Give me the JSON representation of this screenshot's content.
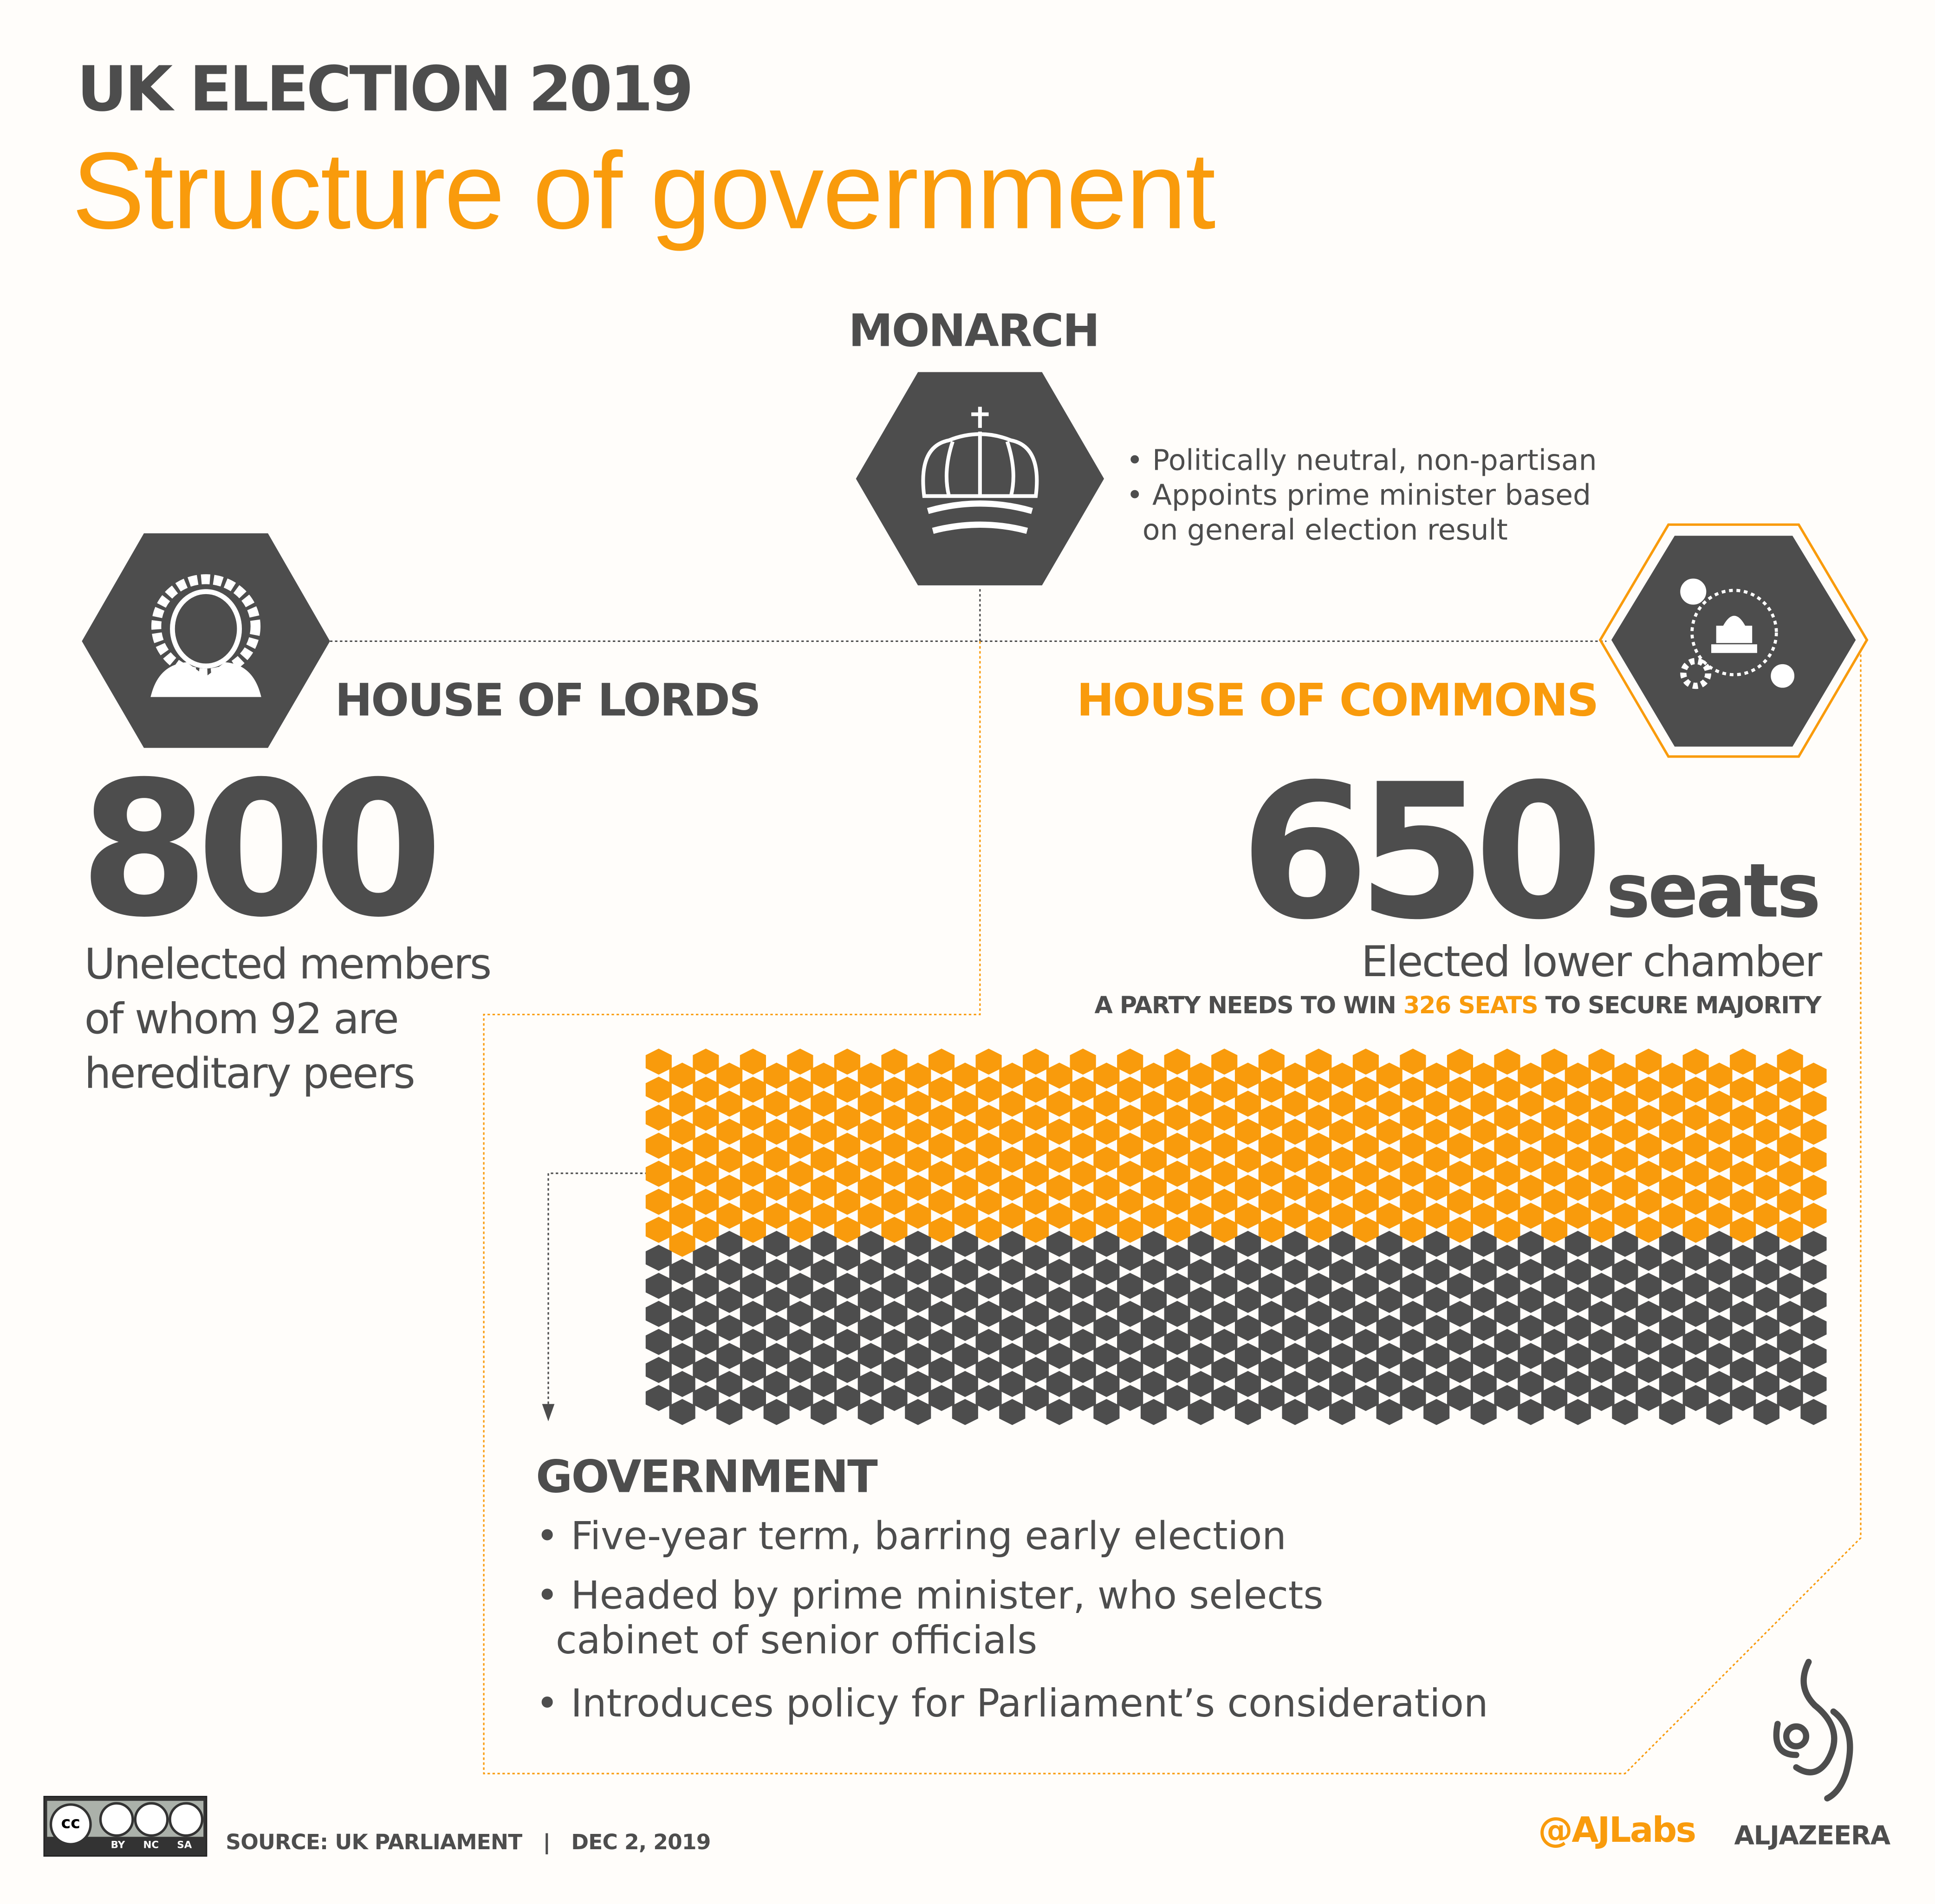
{
  "header": {
    "kicker": "UK ELECTION 2019",
    "title": "Structure of government"
  },
  "monarch": {
    "title": "MONARCH",
    "bullets": [
      "• Politically neutral, non-partisan",
      "• Appoints prime minister based",
      "on general election result"
    ],
    "icon": "crown-icon"
  },
  "lords": {
    "title": "HOUSE OF LORDS",
    "count": "800",
    "lines": [
      "Unelected members",
      "of whom  92 are",
      "hereditary peers"
    ],
    "icon": "judge-wig-icon"
  },
  "commons": {
    "title": "HOUSE OF COMMONS",
    "count": "650",
    "unit": "seats",
    "subtitle": "Elected lower chamber",
    "majority_prefix": "A PARTY NEEDS TO WIN ",
    "majority_highlight": "326 SEATS",
    "majority_suffix": " TO SECURE MAJORITY",
    "icon": "parliament-cycle-icon"
  },
  "seat_grid": {
    "total_seats": 650,
    "majority_seats": 326,
    "colors": {
      "majority": "#f99b0c",
      "rest": "#4d4d4d"
    }
  },
  "government": {
    "title": "GOVERNMENT",
    "bullets": [
      "• Five-year term, barring early election",
      "• Headed by prime minister, who selects",
      "cabinet of senior officials",
      "• Introduces policy for Parliament’s consideration"
    ]
  },
  "footer": {
    "license": "CC BY NC SA",
    "license_parts": [
      "BY",
      "NC",
      "SA"
    ],
    "source": "SOURCE: UK PARLIAMENT",
    "separator": "|",
    "date": "DEC 2, 2019",
    "handle": "@AJLabs",
    "brand": "ALJAZEERA"
  },
  "colors": {
    "accent": "#f99b0c",
    "dark": "#4d4d4d",
    "background": "#fffdfa"
  }
}
